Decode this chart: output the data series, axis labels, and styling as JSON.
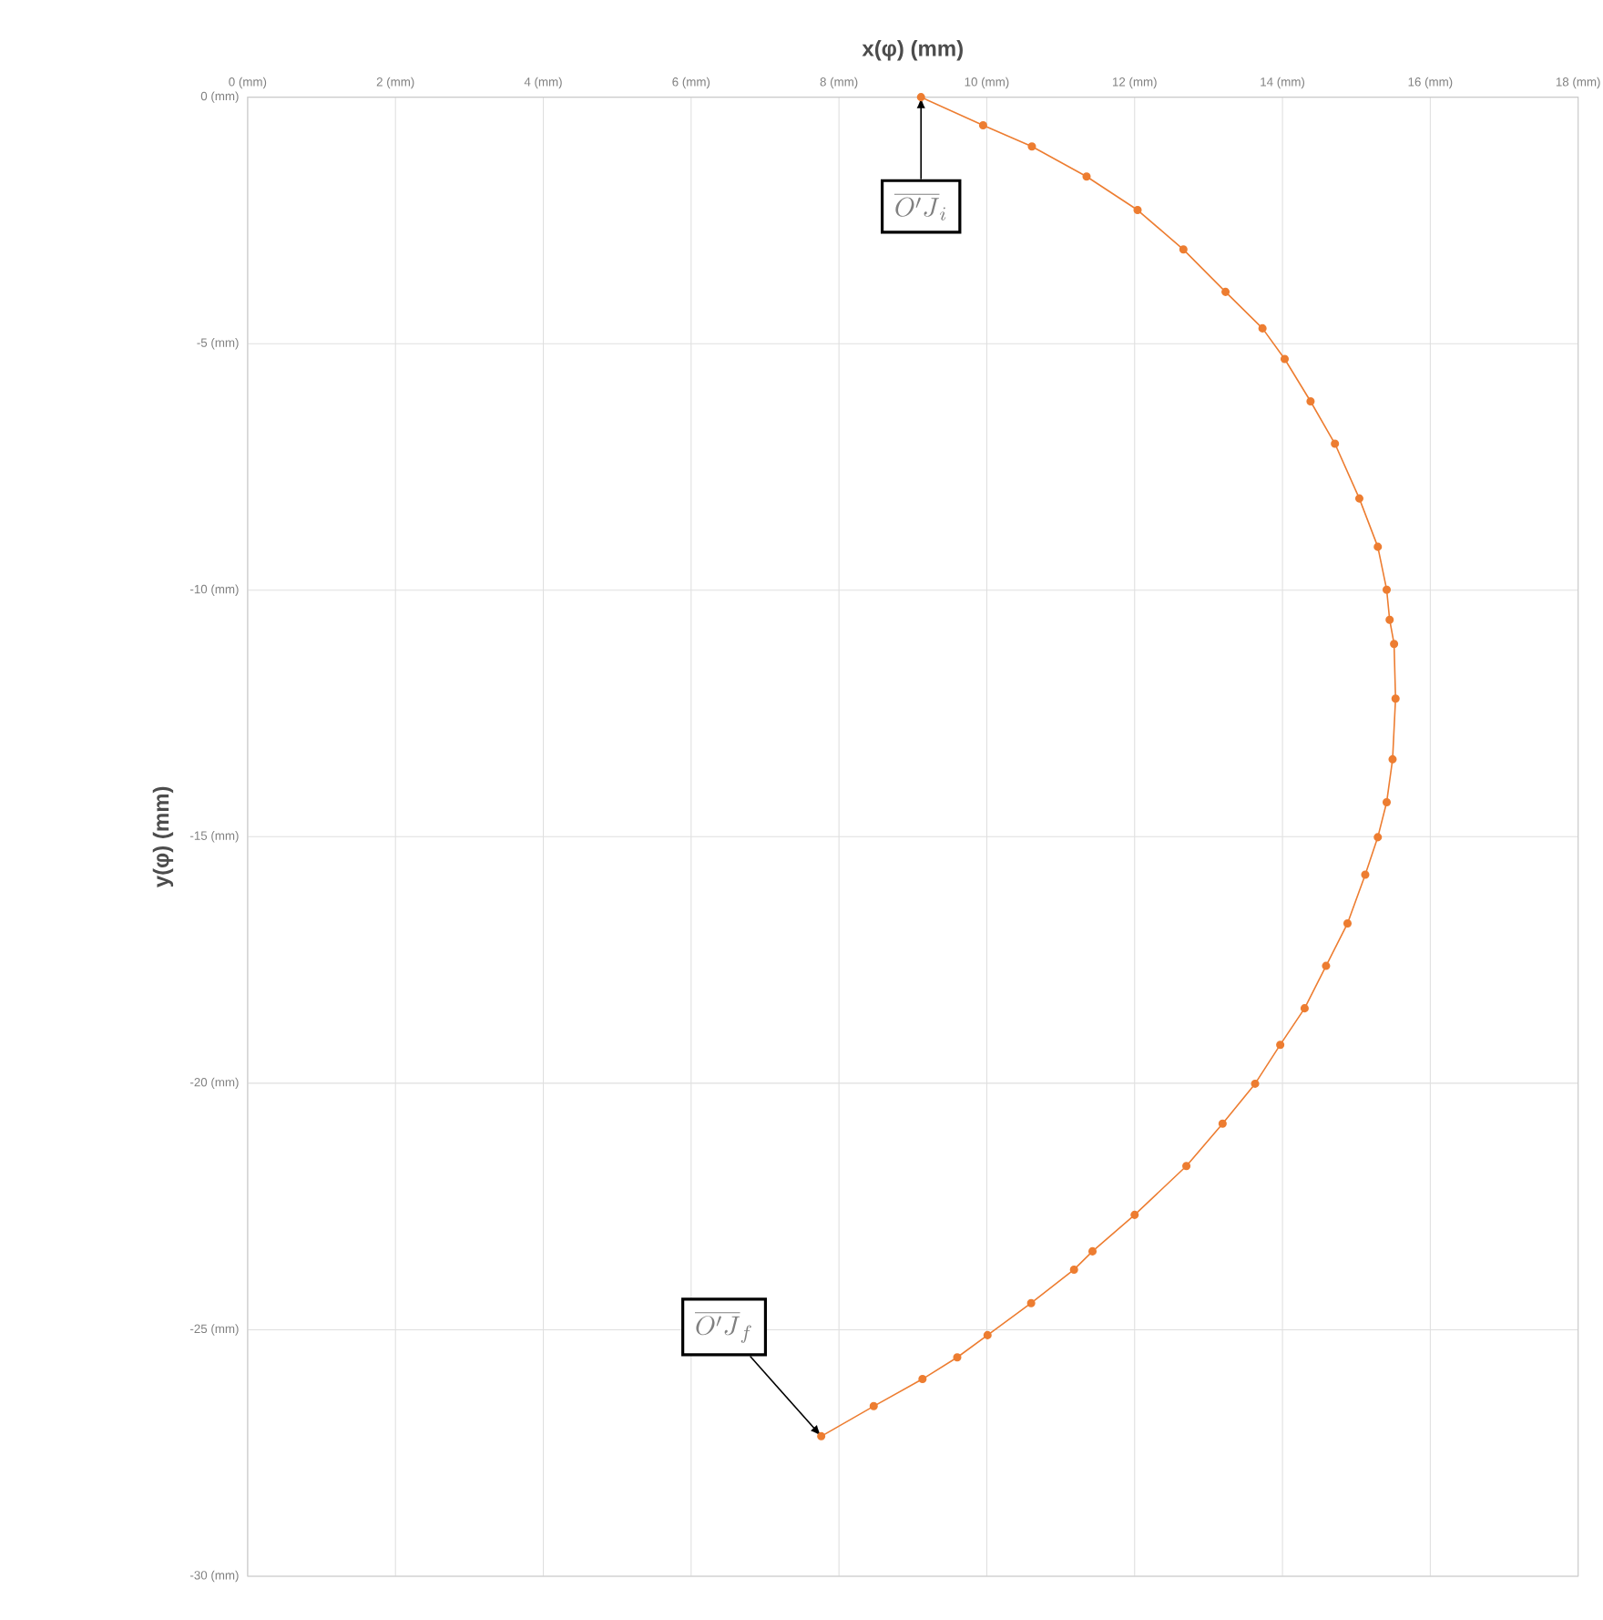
{
  "chart_data": {
    "type": "line",
    "xlabel": "x(φ) (mm)",
    "ylabel": "y(φ) (mm)",
    "xlim": [
      0,
      18
    ],
    "ylim": [
      -30,
      0
    ],
    "xticks": [
      {
        "value": 0,
        "label": "0 (mm)"
      },
      {
        "value": 2,
        "label": "2 (mm)"
      },
      {
        "value": 4,
        "label": "4 (mm)"
      },
      {
        "value": 6,
        "label": "6 (mm)"
      },
      {
        "value": 8,
        "label": "8 (mm)"
      },
      {
        "value": 10,
        "label": "10 (mm)"
      },
      {
        "value": 12,
        "label": "12 (mm)"
      },
      {
        "value": 14,
        "label": "14 (mm)"
      },
      {
        "value": 16,
        "label": "16 (mm)"
      },
      {
        "value": 18,
        "label": "18 (mm)"
      }
    ],
    "yticks": [
      {
        "value": -30,
        "label": "-30 (mm)"
      },
      {
        "value": -25,
        "label": "-25 (mm)"
      },
      {
        "value": -20,
        "label": "-20 (mm)"
      },
      {
        "value": -15,
        "label": "-15 (mm)"
      },
      {
        "value": -10,
        "label": "-10 (mm)"
      },
      {
        "value": -5,
        "label": "-5 (mm)"
      },
      {
        "value": 0,
        "label": "0 (mm)"
      }
    ],
    "grid": true,
    "marker": "circle",
    "line_style": "solid",
    "series": [
      {
        "color": "#ed7d31",
        "x": [
          9.11,
          9.95,
          10.61,
          11.35,
          12.04,
          12.66,
          13.23,
          13.73,
          14.03,
          14.38,
          14.71,
          15.04,
          15.29,
          15.41,
          15.45,
          15.51,
          15.53,
          15.49,
          15.41,
          15.29,
          15.12,
          14.88,
          14.59,
          14.3,
          13.97,
          13.63,
          13.19,
          12.7,
          12.0,
          11.43,
          11.18,
          10.6,
          10.01,
          9.6,
          9.13,
          8.47,
          7.76
        ],
        "values": [
          0,
          -0.57,
          -1.0,
          -1.61,
          -2.29,
          -3.09,
          -3.95,
          -4.69,
          -5.31,
          -6.17,
          -7.03,
          -8.14,
          -9.12,
          -9.99,
          -10.6,
          -11.09,
          -12.2,
          -13.43,
          -14.3,
          -15.01,
          -15.77,
          -16.76,
          -17.62,
          -18.48,
          -19.22,
          -20.01,
          -20.82,
          -21.68,
          -22.67,
          -23.41,
          -23.78,
          -24.46,
          -25.11,
          -25.56,
          -26.0,
          -26.55,
          -27.16
        ]
      }
    ],
    "annotations": [
      {
        "text": "\\overline{O'J}_i",
        "x": 9.11,
        "y": 0
      },
      {
        "text": "\\overline{O'J}_f",
        "x": 7.76,
        "y": -27.16
      }
    ]
  }
}
